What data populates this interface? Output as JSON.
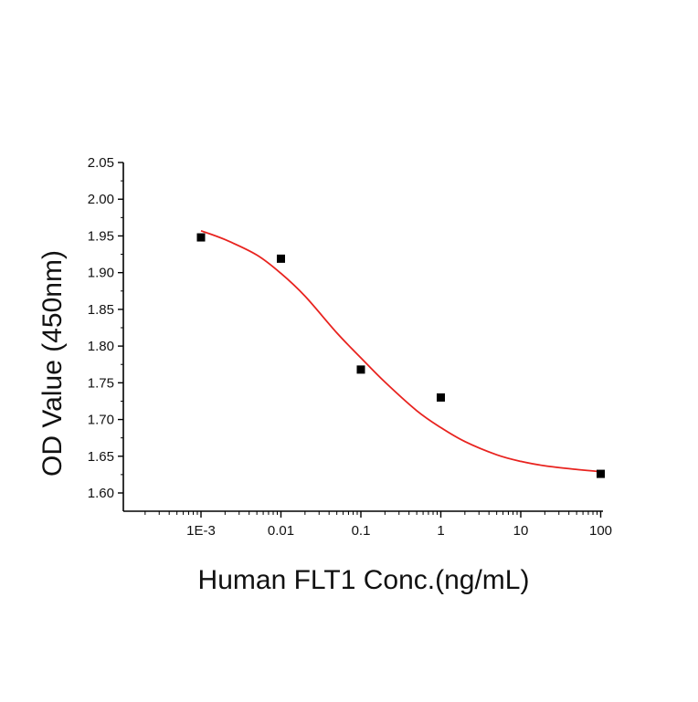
{
  "chart_data": {
    "type": "scatter",
    "title": "",
    "xlabel": "Human FLT1 Conc.(ng/mL)",
    "ylabel": "OD Value (450nm)",
    "x_scale": "log",
    "xlim": [
      0.0001,
      120
    ],
    "ylim": [
      1.58,
      2.05
    ],
    "x_ticks": [
      {
        "value": 0.001,
        "label": "1E-3"
      },
      {
        "value": 0.01,
        "label": "0.01"
      },
      {
        "value": 0.1,
        "label": "0.1"
      },
      {
        "value": 1,
        "label": "1"
      },
      {
        "value": 10,
        "label": "10"
      },
      {
        "value": 100,
        "label": "100"
      }
    ],
    "y_ticks": [
      {
        "value": 1.6,
        "label": "1.60"
      },
      {
        "value": 1.65,
        "label": "1.65"
      },
      {
        "value": 1.7,
        "label": "1.70"
      },
      {
        "value": 1.75,
        "label": "1.75"
      },
      {
        "value": 1.8,
        "label": "1.80"
      },
      {
        "value": 1.85,
        "label": "1.85"
      },
      {
        "value": 1.9,
        "label": "1.90"
      },
      {
        "value": 1.95,
        "label": "1.95"
      },
      {
        "value": 2.0,
        "label": "2.00"
      },
      {
        "value": 2.05,
        "label": "2.05"
      }
    ],
    "series": [
      {
        "type": "scatter",
        "marker": "square",
        "color": "#000000",
        "x": [
          0.001,
          0.01,
          0.1,
          1,
          100
        ],
        "y": [
          1.948,
          1.919,
          1.768,
          1.73,
          1.626
        ]
      },
      {
        "type": "line",
        "color": "#e8231f",
        "x": [
          0.001,
          0.002,
          0.005,
          0.01,
          0.02,
          0.05,
          0.1,
          0.2,
          0.5,
          1,
          2,
          5,
          10,
          20,
          50,
          100
        ],
        "y": [
          1.957,
          1.945,
          1.924,
          1.899,
          1.868,
          1.818,
          1.784,
          1.751,
          1.712,
          1.689,
          1.67,
          1.652,
          1.643,
          1.637,
          1.632,
          1.629
        ]
      }
    ],
    "grid": false,
    "legend": "none"
  }
}
